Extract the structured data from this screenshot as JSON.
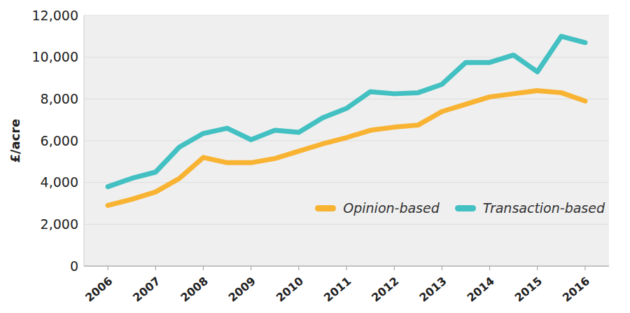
{
  "chart_data": {
    "type": "line",
    "ylabel": "£/acre",
    "x": [
      2006,
      2006.5,
      2007,
      2007.5,
      2008,
      2008.5,
      2009,
      2009.5,
      2010,
      2010.5,
      2011,
      2011.5,
      2012,
      2012.5,
      2013,
      2013.5,
      2014,
      2014.5,
      2015,
      2015.5,
      2016
    ],
    "series": [
      {
        "name": "Opinion-based",
        "color": "#f8b333",
        "values": [
          2900,
          3200,
          3550,
          4200,
          5200,
          4950,
          4950,
          5150,
          5500,
          5850,
          6150,
          6500,
          6650,
          6750,
          7400,
          7750,
          8100,
          8250,
          8400,
          8300,
          7900
        ]
      },
      {
        "name": "Transaction-based",
        "color": "#43c0c2",
        "values": [
          3800,
          4200,
          4500,
          5700,
          6350,
          6600,
          6050,
          6500,
          6400,
          7100,
          7550,
          8350,
          8250,
          8300,
          8700,
          9750,
          9750,
          10100,
          9300,
          11000,
          10700
        ]
      }
    ],
    "xlim": [
      2005.5,
      2016.5
    ],
    "xticks": [
      2006,
      2007,
      2008,
      2009,
      2010,
      2011,
      2012,
      2013,
      2014,
      2015,
      2016
    ],
    "ylim": [
      0,
      12000
    ],
    "yticks": [
      0,
      {
        "value": 2000,
        "label": "2,000"
      },
      {
        "value": 4000,
        "label": "4,000"
      },
      {
        "value": 6000,
        "label": "6,000"
      },
      {
        "value": 8000,
        "label": "8,000"
      },
      {
        "value": 10000,
        "label": "10,000"
      },
      {
        "value": 12000,
        "label": "12,000"
      }
    ],
    "grid": true,
    "legend": "lower right"
  }
}
